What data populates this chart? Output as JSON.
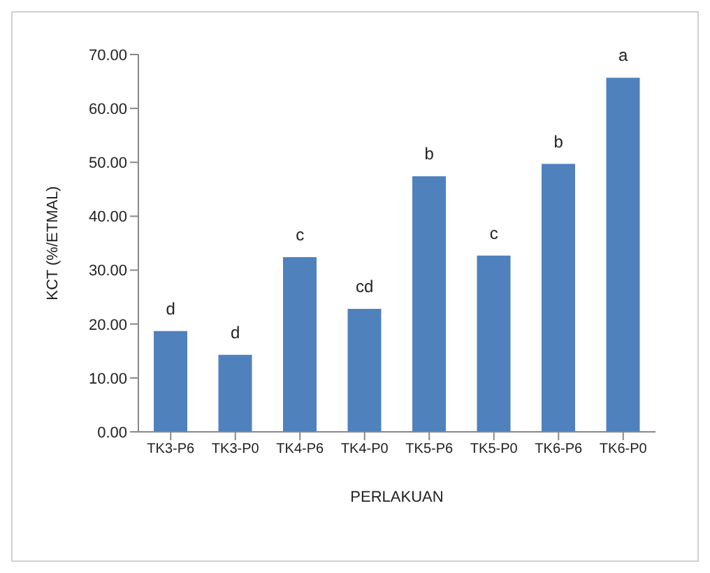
{
  "chart_data": {
    "type": "bar",
    "xlabel": "PERLAKUAN",
    "ylabel": "KCT (%/ETMAL)",
    "categories": [
      "TK3-P6",
      "TK3-P0",
      "TK4-P6",
      "TK4-P0",
      "TK5-P6",
      "TK5-P0",
      "TK6-P6",
      "TK6-P0"
    ],
    "values": [
      18.7,
      14.3,
      32.4,
      22.8,
      47.4,
      32.7,
      49.7,
      65.7
    ],
    "color": "#4f81bd",
    "ylim": [
      0,
      70
    ],
    "yticks": [
      {
        "value": 0,
        "label": "0.00"
      },
      {
        "value": 10,
        "label": "10.00"
      },
      {
        "value": 20,
        "label": "20.00"
      },
      {
        "value": 30,
        "label": "30.00"
      },
      {
        "value": 40,
        "label": "40.00"
      },
      {
        "value": 50,
        "label": "50.00"
      },
      {
        "value": 60,
        "label": "60.00"
      },
      {
        "value": 70,
        "label": "70.00"
      }
    ],
    "grid": false,
    "legend": false,
    "annotations": [
      {
        "text": "d",
        "x": "TK3-P6",
        "y": 18.7
      },
      {
        "text": "d",
        "x": "TK3-P0",
        "y": 14.3
      },
      {
        "text": "c",
        "x": "TK4-P6",
        "y": 32.4
      },
      {
        "text": "cd",
        "x": "TK4-P0",
        "y": 22.8
      },
      {
        "text": "b",
        "x": "TK5-P6",
        "y": 47.4
      },
      {
        "text": "c",
        "x": "TK5-P0",
        "y": 32.7
      },
      {
        "text": "b",
        "x": "TK6-P6",
        "y": 49.7
      },
      {
        "text": "a",
        "x": "TK6-P0",
        "y": 65.7
      }
    ]
  }
}
